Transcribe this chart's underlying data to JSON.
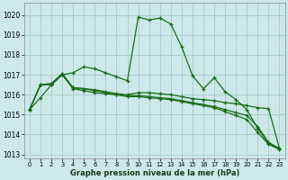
{
  "title": "Graphe pression niveau de la mer (hPa)",
  "background_color": "#cce8e8",
  "grid_color": "#aacccc",
  "line_color": "#1a6b1a",
  "xlim": [
    -0.5,
    23.5
  ],
  "ylim": [
    1012.8,
    1020.6
  ],
  "yticks": [
    1013,
    1014,
    1015,
    1016,
    1017,
    1018,
    1019,
    1020
  ],
  "xticks": [
    0,
    1,
    2,
    3,
    4,
    5,
    6,
    7,
    8,
    9,
    10,
    11,
    12,
    13,
    14,
    15,
    16,
    17,
    18,
    19,
    20,
    21,
    22,
    23
  ],
  "series": [
    [
      1015.25,
      1015.85,
      1016.5,
      1017.0,
      1017.1,
      1017.4,
      1017.3,
      1017.1,
      1016.9,
      1016.7,
      1019.9,
      1019.75,
      1019.85,
      1019.55,
      1018.4,
      1016.95,
      1016.3,
      1016.85,
      1016.15,
      1015.75,
      1015.25,
      1014.3,
      1013.55,
      1013.3
    ],
    [
      1015.25,
      1016.5,
      1016.55,
      1017.05,
      1016.35,
      1016.3,
      1016.25,
      1016.15,
      1016.05,
      1016.0,
      1016.1,
      1016.1,
      1016.05,
      1016.0,
      1015.9,
      1015.8,
      1015.75,
      1015.7,
      1015.6,
      1015.55,
      1015.45,
      1015.35,
      1015.3,
      1013.3
    ],
    [
      1015.25,
      1016.5,
      1016.55,
      1017.05,
      1016.35,
      1016.3,
      1016.2,
      1016.1,
      1016.0,
      1015.95,
      1015.95,
      1015.9,
      1015.85,
      1015.8,
      1015.7,
      1015.6,
      1015.5,
      1015.4,
      1015.25,
      1015.1,
      1014.95,
      1014.4,
      1013.6,
      1013.3
    ],
    [
      1015.25,
      1016.5,
      1016.5,
      1017.0,
      1016.3,
      1016.2,
      1016.1,
      1016.05,
      1016.0,
      1015.9,
      1015.9,
      1015.85,
      1015.8,
      1015.75,
      1015.65,
      1015.55,
      1015.45,
      1015.35,
      1015.15,
      1014.95,
      1014.75,
      1014.1,
      1013.5,
      1013.25
    ]
  ]
}
